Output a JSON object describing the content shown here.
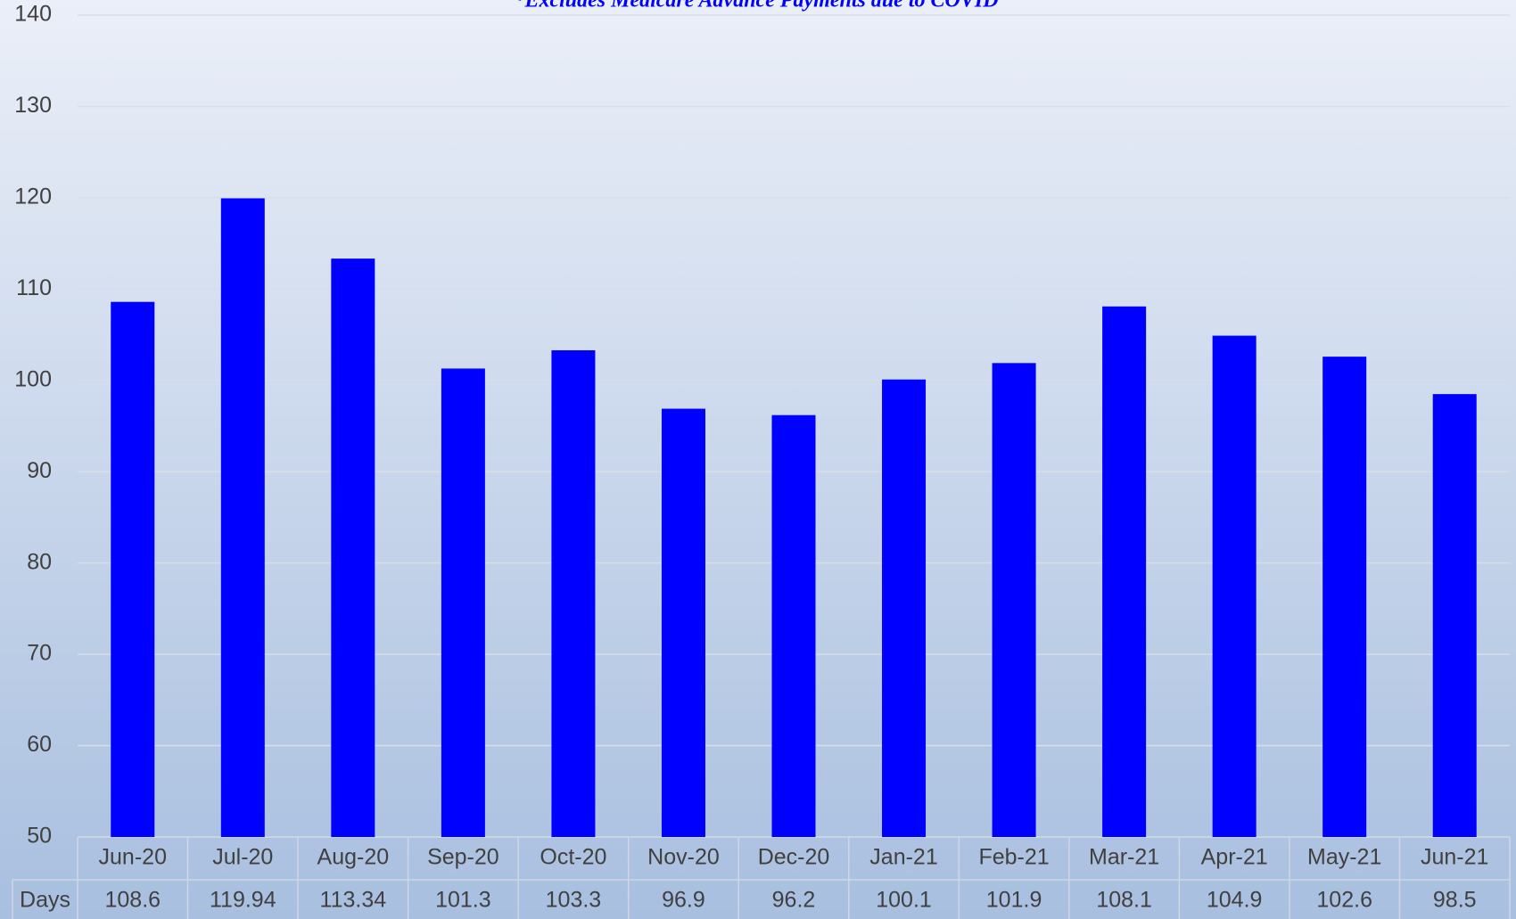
{
  "chart_data": {
    "type": "bar",
    "subtitle": "*Excludes Medicare Advance Payments due to COVID",
    "categories": [
      "Jun-20",
      "Jul-20",
      "Aug-20",
      "Sep-20",
      "Oct-20",
      "Nov-20",
      "Dec-20",
      "Jan-21",
      "Feb-21",
      "Mar-21",
      "Apr-21",
      "May-21",
      "Jun-21"
    ],
    "series": [
      {
        "name": "Days",
        "color": "#0000ff",
        "values": [
          108.6,
          119.94,
          113.34,
          101.3,
          103.3,
          96.9,
          96.2,
          100.1,
          101.9,
          108.1,
          104.9,
          102.6,
          98.5
        ]
      }
    ],
    "ylim": [
      50,
      140
    ],
    "yticks": [
      50,
      60,
      70,
      80,
      90,
      100,
      110,
      120,
      130,
      140
    ],
    "grid": true
  }
}
